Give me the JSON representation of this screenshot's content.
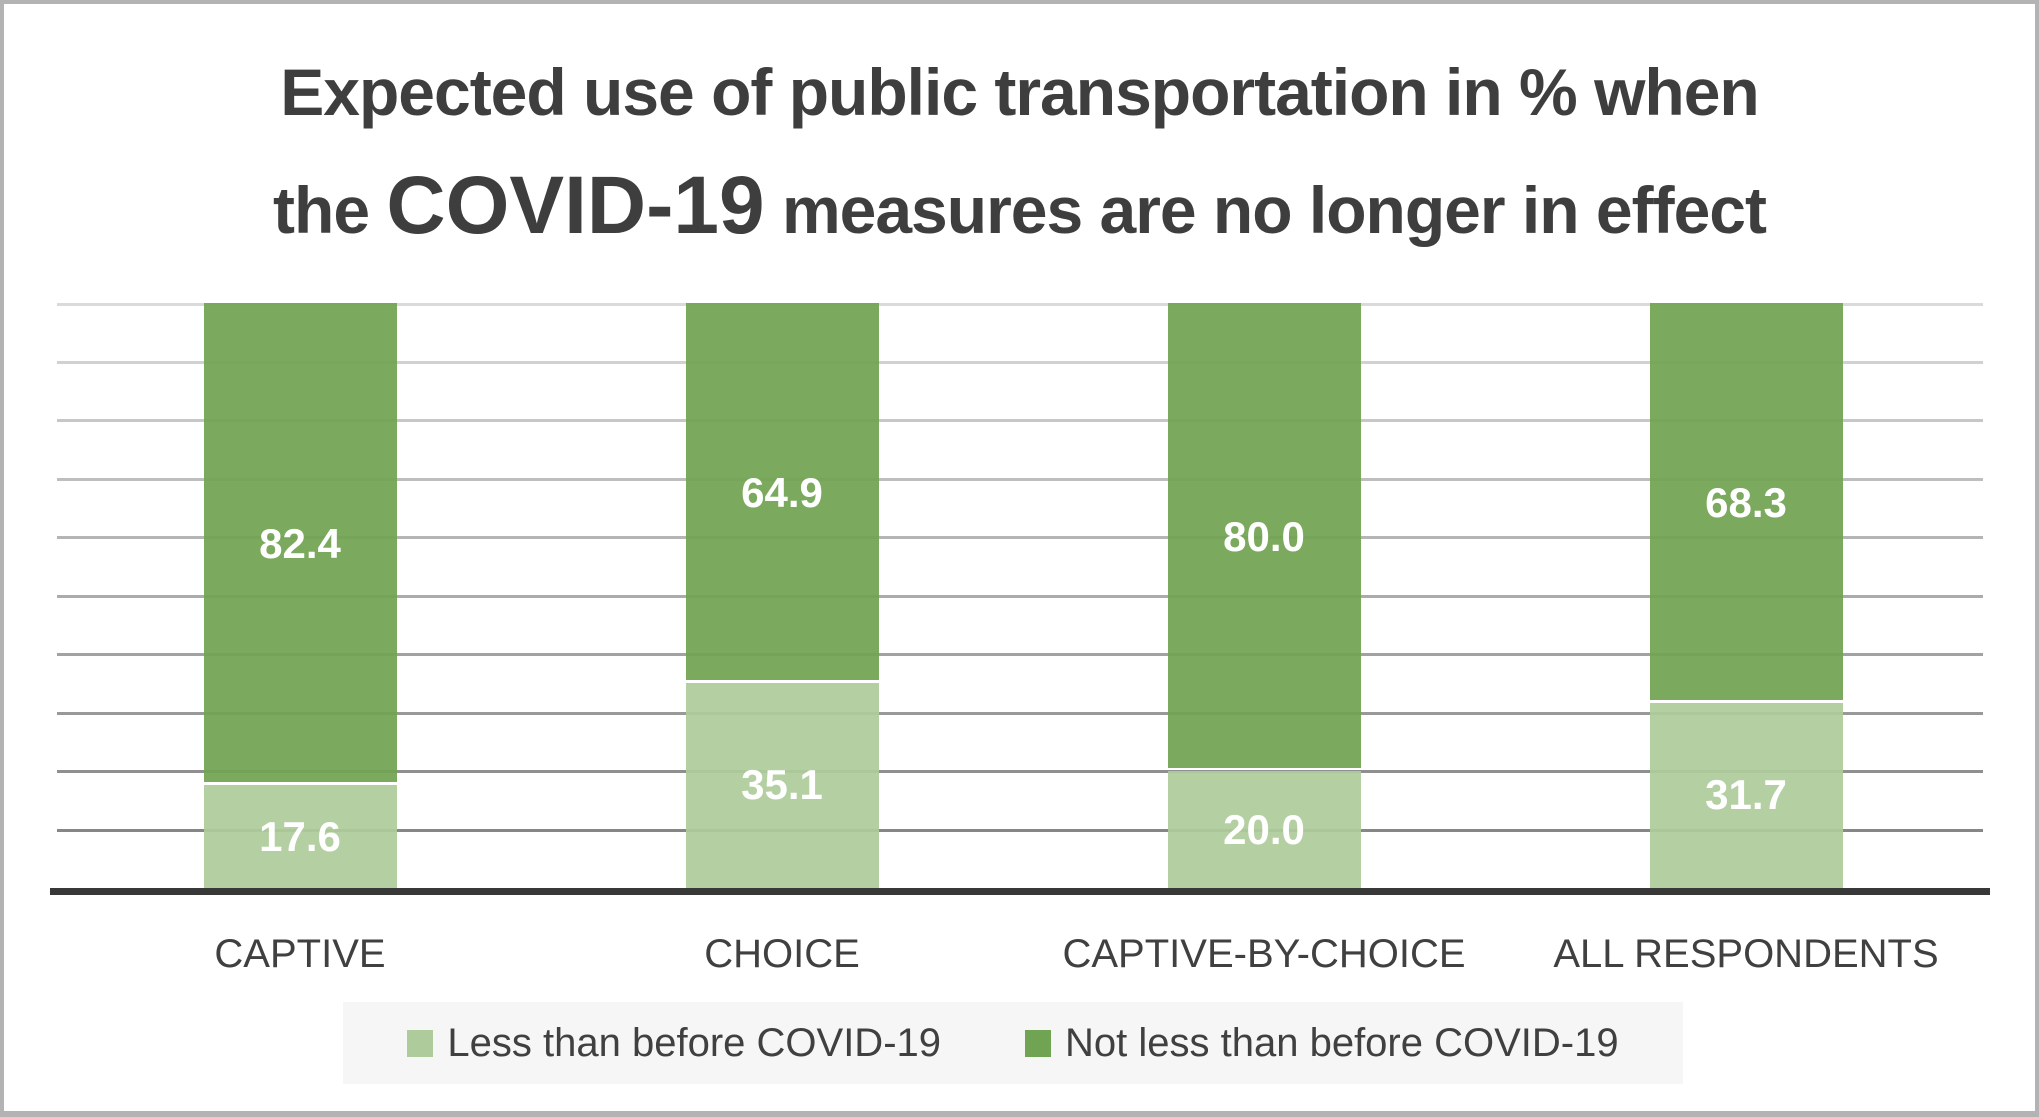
{
  "chart_data": {
    "type": "bar",
    "subtype": "stacked-column",
    "title_line1": "Expected use of public transportation in % when",
    "title_line2_prefix": "the ",
    "title_line2_emphasis": "COVID-19",
    "title_line2_suffix": " measures are no longer in effect",
    "categories": [
      "CAPTIVE",
      "CHOICE",
      "CAPTIVE-BY-CHOICE",
      "ALL RESPONDENTS"
    ],
    "series": [
      {
        "name": "Less than before COVID-19",
        "color": "#aecc9b",
        "values": [
          17.6,
          35.1,
          20.0,
          31.7
        ]
      },
      {
        "name": "Not less than before COVID-19",
        "color": "#71a452",
        "values": [
          82.4,
          64.9,
          80.0,
          68.3
        ]
      }
    ],
    "data_labels": {
      "less_than": [
        "17.6",
        "35.1",
        "20.0",
        "31.7"
      ],
      "not_less_than": [
        "82.4",
        "64.9",
        "80.0",
        "68.3"
      ]
    },
    "ylim": [
      0,
      100
    ],
    "gridline_step": 10,
    "grid_on": true,
    "xlabel": "",
    "ylabel": "",
    "legend_position": "bottom",
    "legend_entries": [
      "Less than before COVID-19",
      "Not less than before COVID-19"
    ],
    "colors": {
      "series_light_green": "#aecc9b",
      "series_dark_green": "#71a452",
      "data_label_text": "#ffffff",
      "title_text": "#3e3e3e",
      "category_text": "#404040",
      "legend_text": "#404040",
      "legend_background": "#f6f6f6",
      "gridline_top": "#dadada",
      "gridline_bottom": "#868686",
      "axis_baseline": "#383838",
      "page_border": "#b3b3b3",
      "background": "#ffffff"
    }
  }
}
